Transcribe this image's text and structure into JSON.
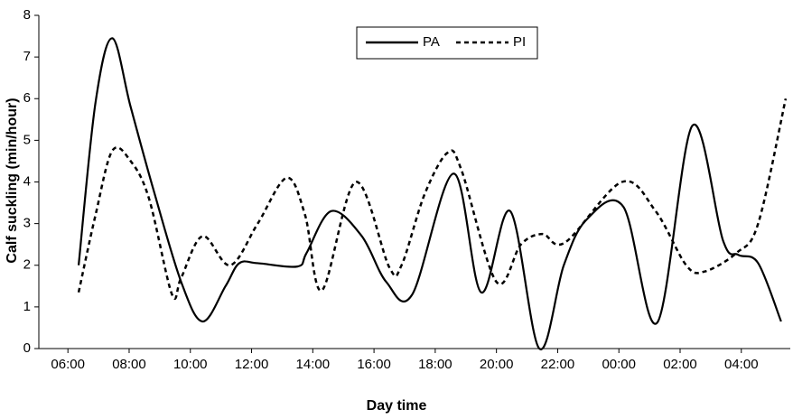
{
  "chart_data": {
    "type": "line",
    "x_label": "Day time",
    "y_label": "Calf suckling (min/hour)",
    "xlim": [
      5.05,
      29.6
    ],
    "xticks": [
      {
        "value": 6,
        "label": "06:00"
      },
      {
        "value": 8,
        "label": "08:00"
      },
      {
        "value": 10,
        "label": "10:00"
      },
      {
        "value": 12,
        "label": "12:00"
      },
      {
        "value": 14,
        "label": "14:00"
      },
      {
        "value": 16,
        "label": "16:00"
      },
      {
        "value": 18,
        "label": "18:00"
      },
      {
        "value": 20,
        "label": "20:00"
      },
      {
        "value": 22,
        "label": "22:00"
      },
      {
        "value": 24,
        "label": "00:00"
      },
      {
        "value": 26,
        "label": "02:00"
      },
      {
        "value": 28,
        "label": "04:00"
      }
    ],
    "ylim": [
      0,
      8
    ],
    "yticks": [
      0,
      1,
      2,
      3,
      4,
      5,
      6,
      7,
      8
    ],
    "legend": "top",
    "series": [
      {
        "name": "PA",
        "color": "#000000",
        "dash": "solid",
        "x": [
          6.35,
          6.9,
          7.45,
          8.05,
          8.8,
          9.7,
          10.4,
          11.15,
          11.6,
          12.2,
          13.5,
          13.8,
          14.6,
          15.6,
          16.4,
          17.25,
          18.6,
          19.5,
          20.45,
          21.4,
          22.2,
          22.95,
          24.15,
          25.25,
          26.4,
          27.4,
          27.9,
          28.55,
          29.3
        ],
        "values": [
          2.0,
          5.9,
          7.45,
          5.8,
          3.8,
          1.6,
          0.65,
          1.5,
          2.05,
          2.05,
          1.97,
          2.3,
          3.3,
          2.7,
          1.6,
          1.3,
          4.2,
          1.35,
          3.3,
          0.0,
          2.0,
          3.1,
          3.4,
          0.62,
          5.35,
          2.6,
          2.25,
          2.05,
          0.65
        ]
      },
      {
        "name": "PI",
        "color": "#000000",
        "dash": "dashed",
        "x": [
          6.35,
          6.9,
          7.45,
          8.05,
          8.65,
          9.4,
          9.7,
          10.4,
          11.3,
          12.2,
          13.15,
          13.75,
          14.3,
          15.4,
          16.5,
          16.9,
          17.65,
          18.4,
          18.85,
          20.0,
          20.8,
          21.5,
          22.25,
          24.1,
          25.2,
          26.2,
          26.8,
          27.85,
          28.55,
          29.45
        ],
        "values": [
          1.35,
          3.2,
          4.75,
          4.5,
          3.6,
          1.3,
          1.7,
          2.7,
          2.0,
          3.0,
          4.1,
          3.2,
          1.4,
          4.0,
          1.95,
          2.0,
          3.7,
          4.7,
          4.3,
          1.6,
          2.5,
          2.75,
          2.55,
          4.0,
          3.3,
          2.0,
          1.85,
          2.3,
          3.0,
          6.0
        ]
      }
    ]
  }
}
